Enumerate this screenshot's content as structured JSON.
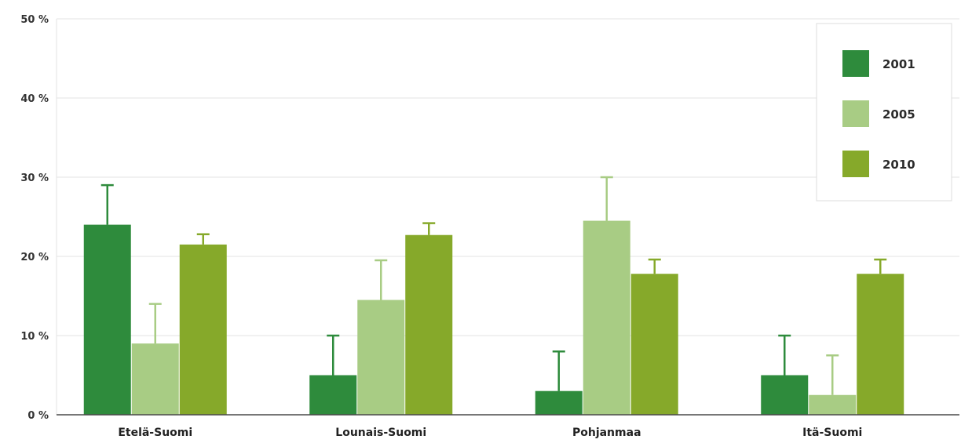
{
  "chart_data": {
    "type": "bar",
    "categories": [
      "Etelä-Suomi",
      "Lounais-Suomi",
      "Pohjanmaa",
      "Itä-Suomi"
    ],
    "series": [
      {
        "name": "2001",
        "color": "#2e8b3c",
        "values": [
          24,
          5,
          3,
          5
        ],
        "errors": [
          5,
          5,
          5,
          5
        ]
      },
      {
        "name": "2005",
        "color": "#a8cc84",
        "values": [
          9,
          14.5,
          24.5,
          2.5
        ],
        "errors": [
          5,
          5,
          5.5,
          5
        ]
      },
      {
        "name": "2010",
        "color": "#86a92a",
        "values": [
          21.5,
          22.7,
          17.8,
          17.8
        ],
        "errors": [
          1.3,
          1.5,
          1.8,
          1.8
        ]
      }
    ],
    "ylim": [
      0,
      50
    ],
    "yticks": [
      0,
      10,
      20,
      30,
      40,
      50
    ],
    "ytick_labels": [
      "0 %",
      "10 %",
      "20 %",
      "30 %",
      "40 %",
      "50 %"
    ],
    "title": "",
    "xlabel": "",
    "ylabel": "",
    "grid": true,
    "legend_position": "top-right"
  }
}
